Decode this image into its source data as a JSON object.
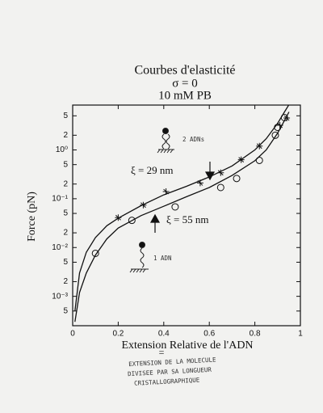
{
  "chart_data": {
    "type": "line",
    "title": "Courbes d'elasticité",
    "subtitle": "σ = 0",
    "condition": "10 mM PB",
    "x_label": "Extension Relative de l'ADN",
    "y_label": "Force (pN)",
    "y_scale": "log",
    "xlim": [
      0,
      1
    ],
    "ylim": [
      0.00025,
      8.3
    ],
    "xticks": [
      0,
      0.2,
      0.4,
      0.6,
      0.8,
      1
    ],
    "yticks": [
      5,
      2,
      {
        "value": 1,
        "label": "10⁰"
      },
      {
        "value": 0.5,
        "label": "5"
      },
      {
        "value": 0.2,
        "label": "2"
      },
      {
        "value": 0.1,
        "label": "10⁻¹"
      },
      {
        "value": 0.05,
        "label": "5"
      },
      {
        "value": 0.02,
        "label": "2"
      },
      {
        "value": 0.01,
        "label": "10⁻²"
      },
      {
        "value": 0.005,
        "label": "5"
      },
      {
        "value": 0.002,
        "label": "2"
      },
      {
        "value": 0.001,
        "label": "10⁻³"
      },
      {
        "value": 0.0005,
        "label": "5"
      }
    ],
    "series": [
      {
        "style": "line",
        "color": "#111111",
        "x": [
          0.01,
          0.03,
          0.06,
          0.1,
          0.15,
          0.2,
          0.3,
          0.4,
          0.5,
          0.6,
          0.7,
          0.8,
          0.85,
          0.9,
          0.93,
          0.95
        ],
        "values": [
          0.0005,
          0.003,
          0.008,
          0.016,
          0.028,
          0.04,
          0.072,
          0.12,
          0.18,
          0.28,
          0.47,
          1.0,
          1.7,
          3.5,
          6,
          8.5
        ]
      },
      {
        "style": "line",
        "color": "#111111",
        "x": [
          0.01,
          0.03,
          0.06,
          0.1,
          0.15,
          0.2,
          0.3,
          0.4,
          0.5,
          0.6,
          0.7,
          0.8,
          0.85,
          0.9,
          0.93,
          0.95
        ],
        "values": [
          0.0003,
          0.0012,
          0.003,
          0.007,
          0.015,
          0.025,
          0.045,
          0.07,
          0.11,
          0.17,
          0.3,
          0.6,
          1.0,
          2.2,
          4,
          6
        ]
      },
      {
        "style": "points",
        "marker": "plus",
        "color": "#111111",
        "x": [
          0.2,
          0.31,
          0.41,
          0.56,
          0.65,
          0.74,
          0.82,
          0.91,
          0.94
        ],
        "values": [
          0.041,
          0.074,
          0.14,
          0.21,
          0.34,
          0.63,
          1.2,
          3.2,
          4.5
        ]
      },
      {
        "style": "points",
        "marker": "circle",
        "color": "#111111",
        "x": [
          0.1,
          0.26,
          0.45,
          0.65,
          0.72,
          0.82,
          0.89,
          0.9,
          0.93
        ],
        "values": [
          0.0076,
          0.036,
          0.068,
          0.17,
          0.26,
          0.61,
          2.0,
          2.9,
          4.6
        ]
      }
    ],
    "annotations": [
      "ξ = 29 nm",
      "ξ = 55 nm",
      "2 ADNs",
      "1 ADN",
      "=",
      "EXTENSION DE LA MOLECULE",
      "DIVISEE PAR SA LONGUEUR",
      "CRISTALLOGRAPHIQUE"
    ]
  }
}
